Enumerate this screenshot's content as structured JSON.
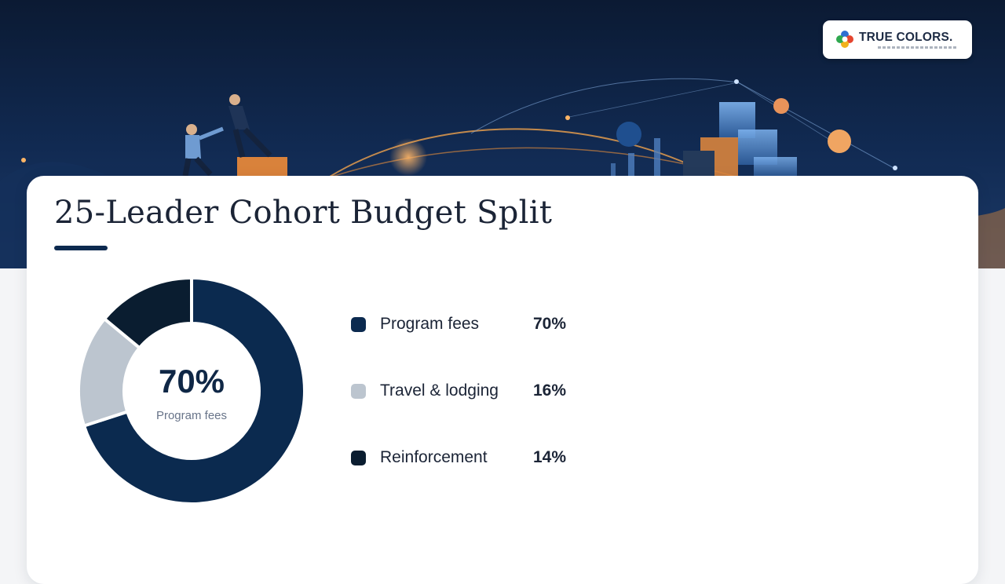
{
  "brand": {
    "name": "TRUE COLORS.",
    "logo_colors": [
      "#2f6fd0",
      "#e5452f",
      "#f2b21b",
      "#2fa84f"
    ]
  },
  "slide": {
    "title": "25-Leader Cohort Budget Split"
  },
  "chart_data": {
    "type": "pie",
    "variant": "donut",
    "title": "25-Leader Cohort Budget Split",
    "unit": "%",
    "categories": [
      "Program fees",
      "Travel & lodging",
      "Reinforcement"
    ],
    "values": [
      70,
      16,
      14
    ],
    "value_labels": [
      "70%",
      "16%",
      "14%"
    ],
    "colors": [
      "#0b2a4f",
      "#bcc5cf",
      "#0a1d30"
    ],
    "center": {
      "value": "70%",
      "label": "Program fees"
    },
    "legend_position": "right"
  }
}
